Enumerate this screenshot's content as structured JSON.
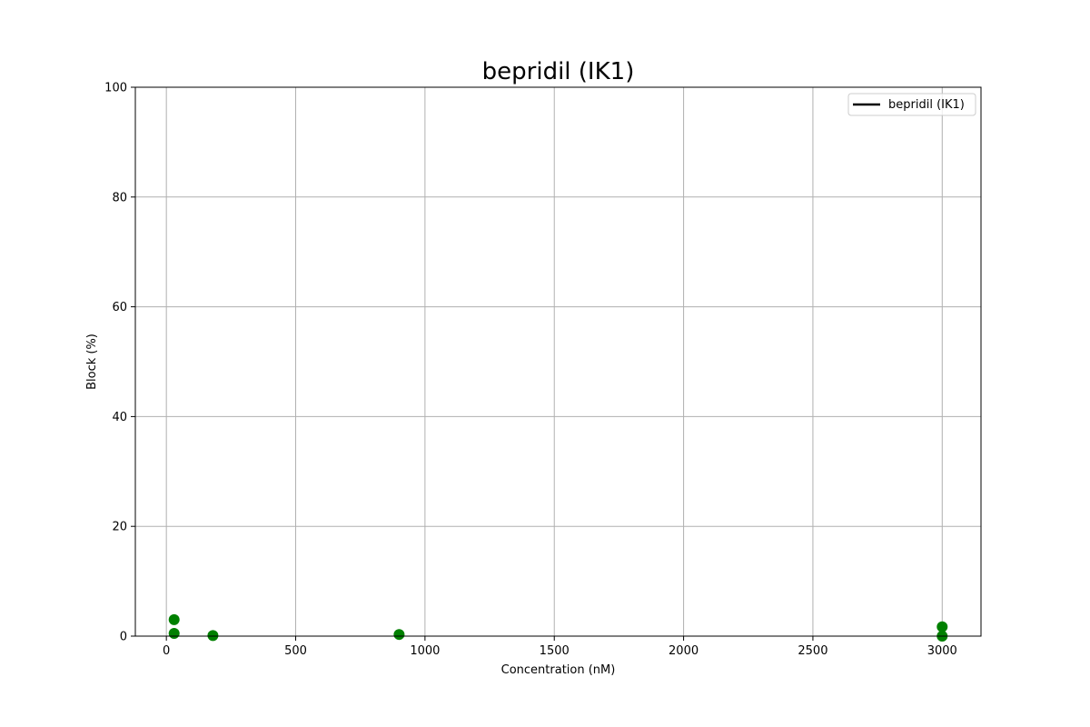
{
  "chart_data": {
    "type": "scatter",
    "title": "bepridil (IK1)",
    "xlabel": "Concentration (nM)",
    "ylabel": "Block (%)",
    "xlim": [
      -120,
      3150
    ],
    "ylim": [
      0,
      100
    ],
    "xticks": [
      0,
      500,
      1000,
      1500,
      2000,
      2500,
      3000
    ],
    "yticks": [
      0,
      20,
      40,
      60,
      80,
      100
    ],
    "grid": true,
    "legend": {
      "placement": "top-right",
      "entries": [
        {
          "label": "bepridil (IK1)",
          "style": "line",
          "color": "#000000"
        }
      ]
    },
    "series": [
      {
        "color": "#008000",
        "marker": "circle",
        "points": [
          {
            "x": 30,
            "y": 3.0
          },
          {
            "x": 30,
            "y": 0.5
          },
          {
            "x": 180,
            "y": 0.1
          },
          {
            "x": 900,
            "y": 0.3
          },
          {
            "x": 3000,
            "y": 1.7
          },
          {
            "x": 3000,
            "y": 0.0
          }
        ]
      }
    ]
  }
}
